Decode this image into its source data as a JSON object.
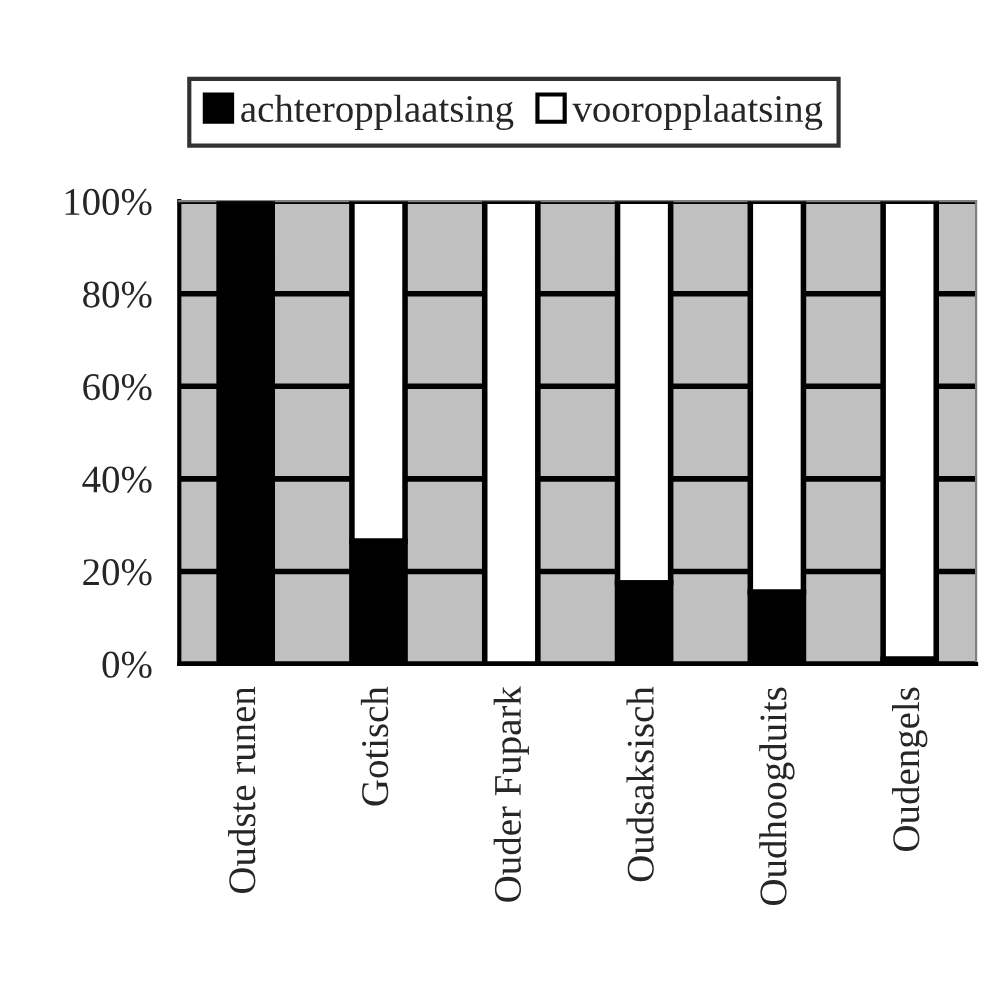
{
  "chart_data": {
    "type": "bar",
    "stacked": true,
    "categories": [
      "Oudste runen",
      "Gotisch",
      "Ouder Fupark",
      "Oudsaksisch",
      "Oudhoogduits",
      "Oudengels"
    ],
    "series": [
      {
        "name": "achteropplaatsing",
        "color": "#000000",
        "values": [
          100,
          26.5,
          0,
          17.5,
          15.5,
          1
        ]
      },
      {
        "name": "vooropplaatsing",
        "color": "#ffffff",
        "values": [
          0,
          73.5,
          100,
          82.5,
          84.5,
          99
        ]
      }
    ],
    "ylim": [
      0,
      100
    ],
    "yticks": [
      {
        "value": 0,
        "label": "0%"
      },
      {
        "value": 20,
        "label": "20%"
      },
      {
        "value": 40,
        "label": "40%"
      },
      {
        "value": 60,
        "label": "60%"
      },
      {
        "value": 80,
        "label": "80%"
      },
      {
        "value": 100,
        "label": "100%"
      }
    ],
    "grid": "y",
    "legend": "top"
  }
}
